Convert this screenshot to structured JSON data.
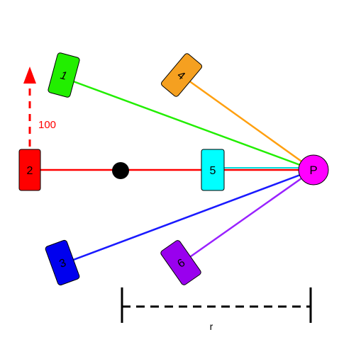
{
  "colors": {
    "card1": "#22ee00",
    "card2": "#ff0000",
    "card3": "#0000ee",
    "card4": "#f5a020",
    "card5": "#00ffff",
    "card6": "#9900ee",
    "point_p": "#ff00ff",
    "line1": "#22ee00",
    "line2": "#ff0000",
    "line3": "#1a1aff",
    "line4": "#ffa010",
    "line5": "#00dddd",
    "line6": "#9922ff",
    "arrow": "#ff0000",
    "arrow_label": "#ff0000",
    "dimension": "#000000",
    "dot": "#000000"
  },
  "cards": [
    {
      "id": "1",
      "label": "1"
    },
    {
      "id": "2",
      "label": "2"
    },
    {
      "id": "3",
      "label": "3"
    },
    {
      "id": "4",
      "label": "4"
    },
    {
      "id": "5",
      "label": "5"
    },
    {
      "id": "6",
      "label": "6"
    }
  ],
  "point_label": "P",
  "arrow_label": "100",
  "dimension_label": "r"
}
